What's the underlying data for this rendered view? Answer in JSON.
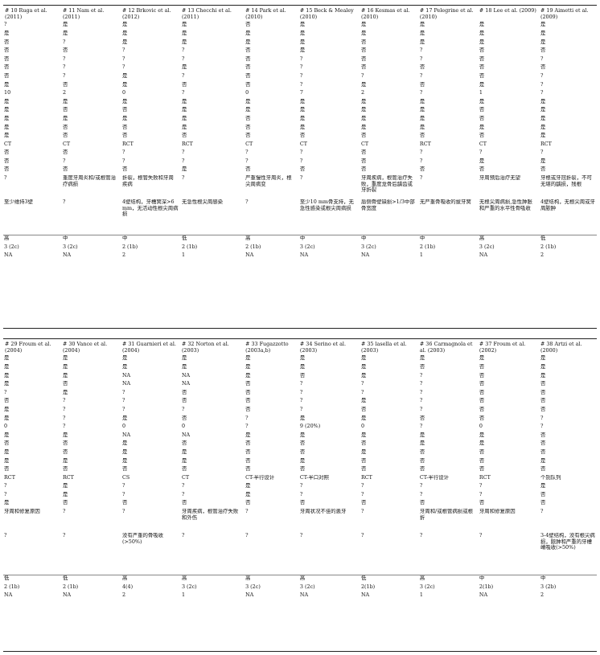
{
  "table1": {
    "headers": [
      "# 10 Ruga et al. (2011)",
      "# 11 Nam et al. (2011)",
      "# 12 Brkovic et al. (2012)",
      "# 13 Checchi et al. (2011)",
      "# 14 Park et al. (2010)",
      "# 15 Beck & Mealey (2010)",
      "# 16 Kesmas et al. (2010)",
      "# 17 Pelegrine et al. (2010)",
      "# 18 Lee et al. (2009)",
      "# 19 Aimetti et al. (2009)"
    ],
    "rows": [
      [
        "?",
        "是",
        "是",
        "是",
        "否",
        "是",
        "是",
        "是",
        "是",
        "是"
      ],
      [
        "是",
        "是",
        "是",
        "是",
        "是",
        "是",
        "是",
        "是",
        "是",
        "是"
      ],
      [
        "否",
        "?",
        "是",
        "是",
        "是",
        "是",
        "否",
        "是",
        "是",
        "是"
      ],
      [
        "否",
        "否",
        "?",
        "?",
        "否",
        "是",
        "否",
        "?",
        "否",
        "否"
      ],
      [
        "否",
        "?",
        "?",
        "?",
        "否",
        "?",
        "否",
        "?",
        "否",
        "?"
      ],
      [
        "否",
        "?",
        "?",
        "是",
        "否",
        "?",
        "否",
        "否",
        "否",
        "否"
      ],
      [
        "否",
        "?",
        "是",
        "?",
        "否",
        "?",
        "?",
        "?",
        "否",
        "?"
      ],
      [
        "是",
        "否",
        "是",
        "否",
        "否",
        "?",
        "是",
        "否",
        "是",
        "?"
      ],
      [
        "10",
        "2",
        "0",
        "?",
        "0",
        "7",
        "2",
        "?",
        "1",
        "?"
      ],
      [
        "是",
        "是",
        "是",
        "是",
        "是",
        "是",
        "是",
        "是",
        "是",
        "是"
      ],
      [
        "是",
        "否",
        "否",
        "是",
        "是",
        "是",
        "是",
        "是",
        "否",
        "是"
      ],
      [
        "是",
        "是",
        "是",
        "是",
        "否",
        "是",
        "是",
        "是",
        "否",
        "是"
      ],
      [
        "是",
        "否",
        "否",
        "是",
        "否",
        "是",
        "是",
        "是",
        "是",
        "是"
      ],
      [
        "是",
        "否",
        "否",
        "否",
        "否",
        "否",
        "否",
        "否",
        "否",
        "是"
      ],
      [
        "CT",
        "CT",
        "RCT",
        "RCT",
        "CT",
        "CT",
        "CT",
        "RCT",
        "CT",
        "RCT"
      ],
      [
        "否",
        "否",
        "?",
        "?",
        "?",
        "?",
        "否",
        "?",
        "?",
        "?"
      ],
      [
        "否",
        "?",
        "?",
        "?",
        "?",
        "?",
        "否",
        "?",
        "是",
        "是"
      ],
      [
        "否",
        "否",
        "否",
        "是",
        "否",
        "否",
        "否",
        "否",
        "否",
        "否"
      ],
      [
        "?",
        "重度牙周炎和/或根管治疗病损",
        "折裂，根管失败和牙周疾病",
        "?",
        "严重慢性牙周炎，根尖周病变",
        "?",
        "牙周疾病，根管治疗失败，重度龙骨后龋齿或牙折裂",
        "?",
        "牙周预后治疗无望",
        "牙根或牙冠折裂，不可无堪的龋损，残根"
      ],
      [
        "至少维持3壁",
        "?",
        "4壁结构，牙槽窝深>6 mm，无活动性根尖周病损",
        "无急性根尖周感染",
        "?",
        "至少10 mm骨支持，无急性感染或根尖周病损",
        "唇侧骨壁缺损>1/3中部骨宽度",
        "无严重骨吸收的拔牙窝",
        "无根尖周病损,急性肿胀和严重的水平性骨吸收",
        "4壁结构，无根尖周或牙周脓肿"
      ],
      [
        "高",
        "中",
        "中",
        "低",
        "高",
        "中",
        "中",
        "中",
        "高",
        "低"
      ],
      [
        "3 (2c)",
        "3 (2c)",
        "2 (1b)",
        "2 (1b)",
        "2 (1b)",
        "3 (2c)",
        "3 (2c)",
        "2 (1b)",
        "3 (2c)",
        "2 (1b)"
      ],
      [
        "NA",
        "NA",
        "2",
        "1",
        "NA",
        "NA",
        "NA",
        "1",
        "NA",
        "2"
      ]
    ]
  },
  "table2": {
    "headers": [
      "# 29 Froum et al. (2004)",
      "# 30 Vance et al. (2004)",
      "# 31 Guarnieri et al. (2004)",
      "# 32 Norton et al. (2003)",
      "# 33 Fugazzotto (2003a,b)",
      "# 34 Serino et al. (2003)",
      "# 35 lasella et al. (2003)",
      "# 36 Carmagnola et al. (2003)",
      "# 37 Froum et al. (2002)",
      "# 38 Artzi et al. (2000)"
    ],
    "rows": [
      [
        "是",
        "是",
        "是",
        "是",
        "是",
        "是",
        "是",
        "是",
        "是",
        "是"
      ],
      [
        "是",
        "是",
        "是",
        "是",
        "是",
        "是",
        "是",
        "否",
        "否",
        "是"
      ],
      [
        "是",
        "是",
        "NA",
        "NA",
        "是",
        "否",
        "是",
        "?",
        "否",
        "是"
      ],
      [
        "是",
        "否",
        "NA",
        "NA",
        "否",
        "?",
        "?",
        "?",
        "否",
        "否"
      ],
      [
        "?",
        "是",
        "?",
        "否",
        "否",
        "?",
        "?",
        "?",
        "否",
        "否"
      ],
      [
        "否",
        "?",
        "?",
        "否",
        "否",
        "?",
        "是",
        "?",
        "否",
        "否"
      ],
      [
        "是",
        "?",
        "?",
        "?",
        "否",
        "?",
        "否",
        "?",
        "否",
        "否"
      ],
      [
        "是",
        "?",
        "是",
        "否",
        "?",
        "是",
        "是",
        "否",
        "否",
        "?"
      ],
      [
        "0",
        "?",
        "0",
        "0",
        "?",
        "9 (20%)",
        "0",
        "?",
        "0",
        "?"
      ],
      [
        "是",
        "是",
        "NA",
        "NA",
        "是",
        "是",
        "是",
        "是",
        "是",
        "否"
      ],
      [
        "否",
        "否",
        "是",
        "否",
        "否",
        "否",
        "否",
        "是",
        "是",
        "否"
      ],
      [
        "是",
        "否",
        "是",
        "是",
        "否",
        "否",
        "是",
        "否",
        "否",
        "否"
      ],
      [
        "是",
        "是",
        "是",
        "是",
        "否",
        "是",
        "否",
        "否",
        "否",
        "是"
      ],
      [
        "否",
        "否",
        "否",
        "否",
        "否",
        "否",
        "否",
        "否",
        "否",
        "否"
      ],
      [
        "RCT",
        "RCT",
        "CS",
        "CT",
        "CT-半行设计",
        "CT-半口对照",
        "RCT",
        "CT-半行设计",
        "RCT",
        "个别队列"
      ],
      [
        "?",
        "是",
        "?",
        "?",
        "是",
        "?",
        "?",
        "?",
        "?",
        "是"
      ],
      [
        "?",
        "是",
        "?",
        "?",
        "是",
        "?",
        "?",
        "?",
        "?",
        "否"
      ],
      [
        "是",
        "否",
        "否",
        "否",
        "否",
        "否",
        "否",
        "否",
        "否",
        "否"
      ],
      [
        "牙周和修复原因",
        "?",
        "?",
        "牙周疾病，根管治疗失败和外伤",
        "?",
        "牙周状况不佳的患牙",
        "?",
        "牙周和/或根管病损或根折",
        "牙周和修复原因",
        "?"
      ],
      [
        "?",
        "?",
        "没有严重的骨吸收(>50%)",
        "?",
        "?",
        "?",
        "?",
        "?",
        "?",
        "3-4壁结构，没有根尖病损，脓肿和严重的牙槽嵴吸收(>50%)"
      ],
      [
        "低",
        "低",
        "高",
        "高",
        "高",
        "高",
        "低",
        "高",
        "中",
        "中"
      ],
      [
        "2 (1b)",
        "2 (1b)",
        "4(4)",
        "3 (2c)",
        "3 (2c)",
        "3 (2c)",
        "2(1b)",
        "3 (2c)",
        "2(1b)",
        "3 (2b)"
      ],
      [
        "NA",
        "NA",
        "2",
        "1",
        "NA",
        "NA",
        "NA",
        "1",
        "NA",
        "2"
      ]
    ]
  }
}
